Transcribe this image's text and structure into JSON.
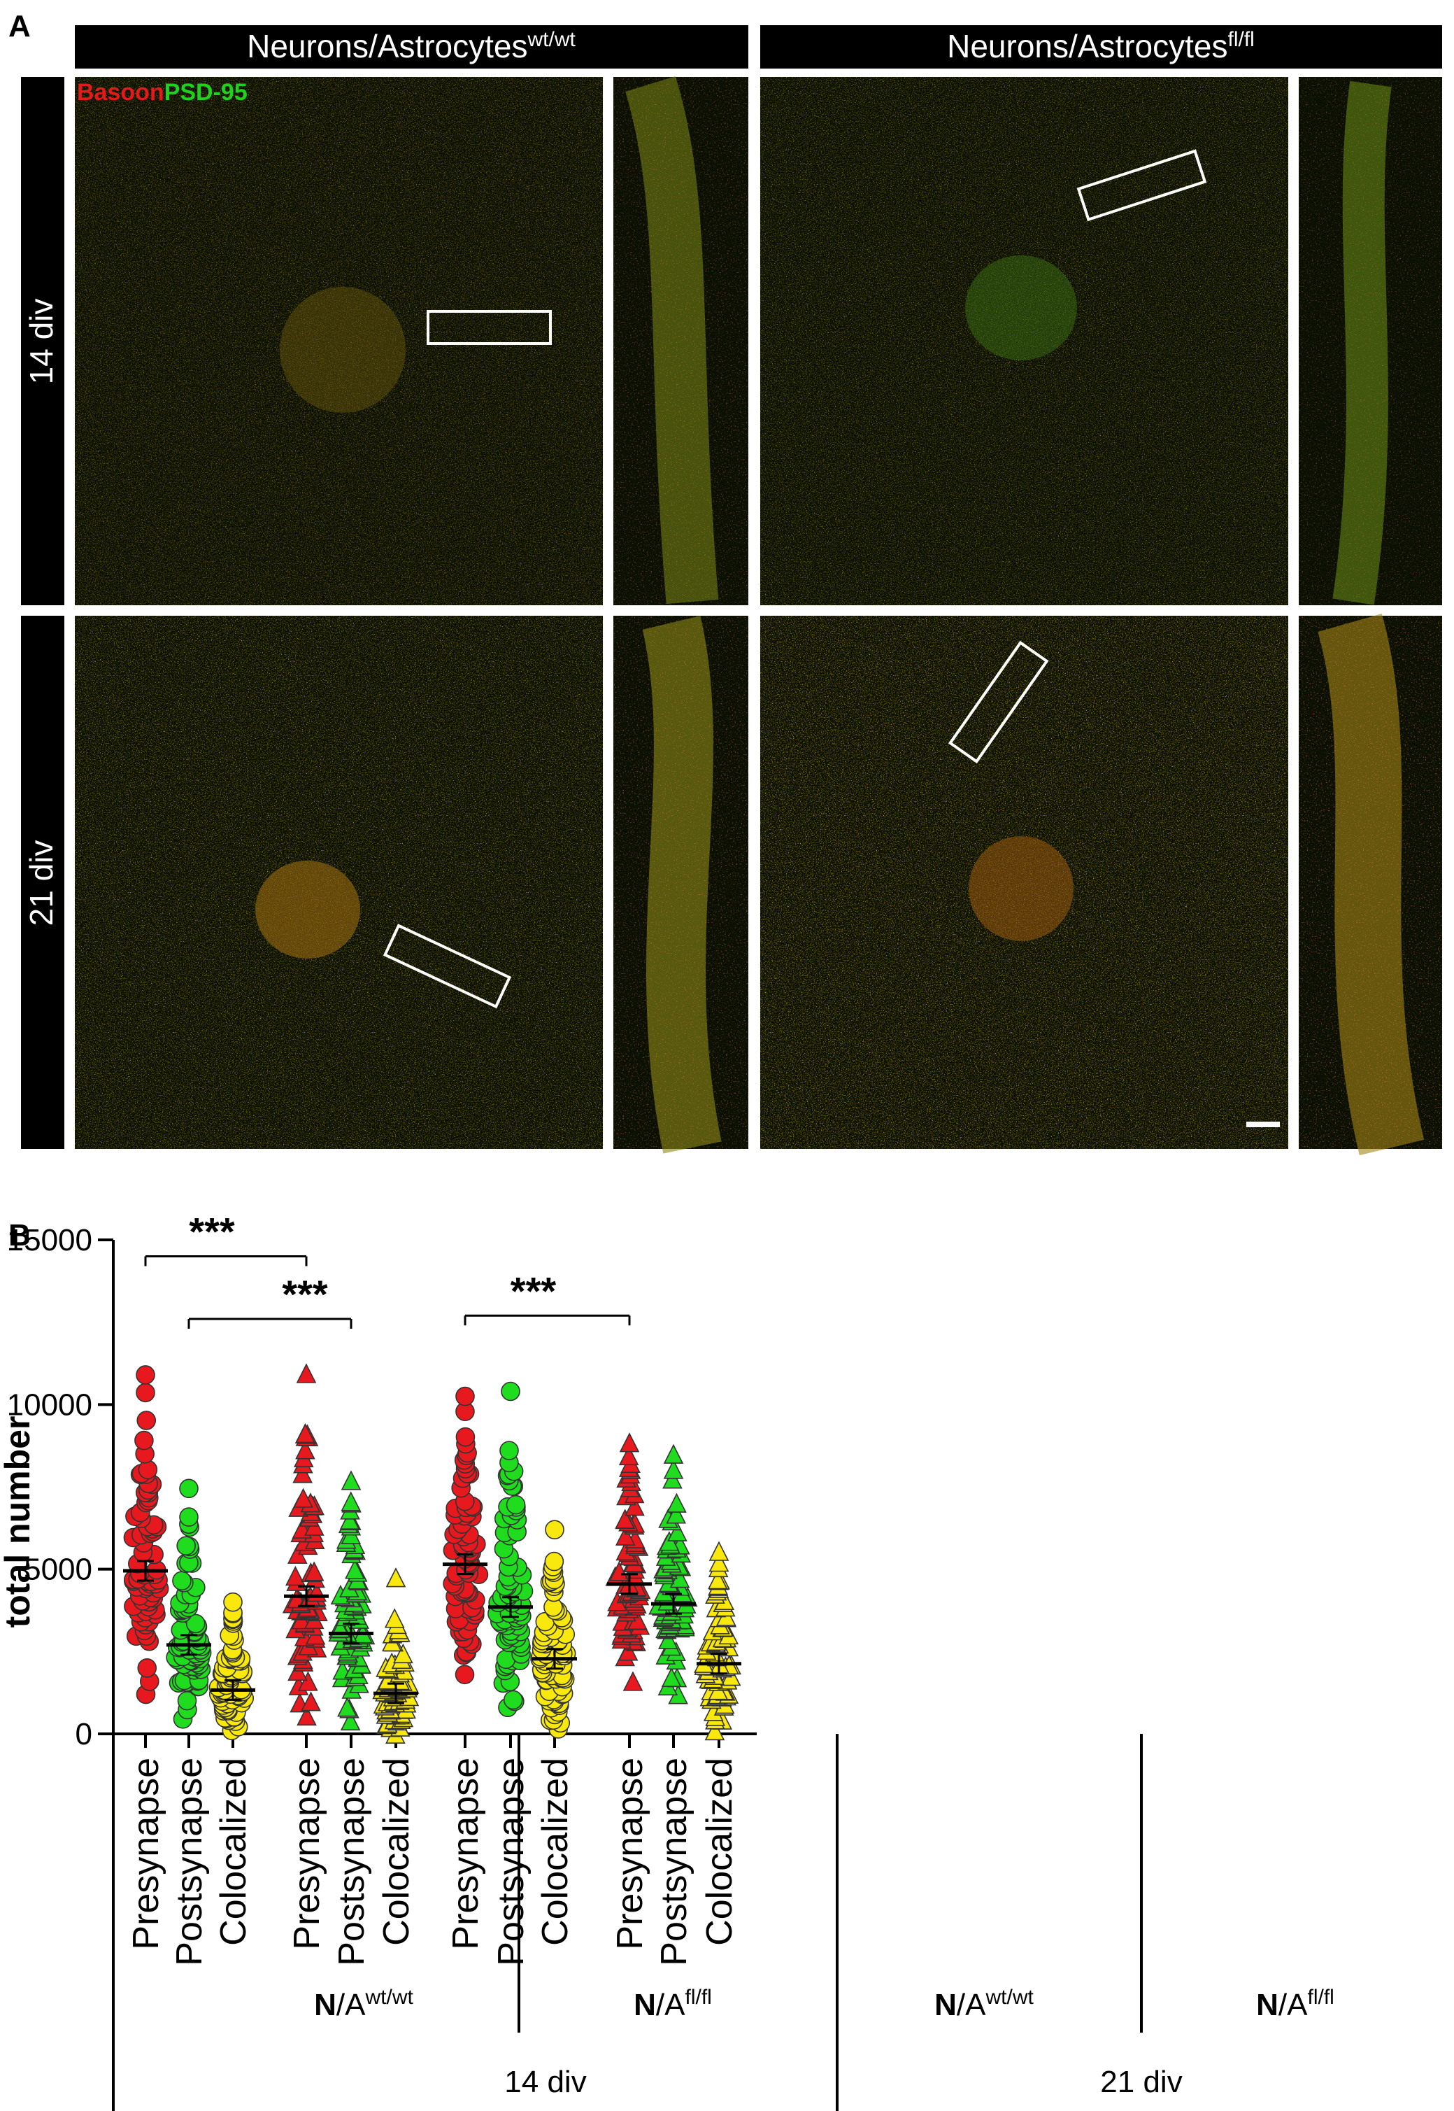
{
  "panel_a": {
    "letter": "A",
    "columns": [
      {
        "label_main": "Neurons/Astrocytes",
        "label_sup": "wt/wt"
      },
      {
        "label_main": "Neurons/Astrocytes",
        "label_sup": "fl/fl"
      }
    ],
    "rows": [
      "14 div",
      "21 div"
    ],
    "stain_labels": [
      {
        "text": "Basoon",
        "color": "#e21a1a"
      },
      {
        "text": "PSD-95",
        "color": "#1fd21f"
      }
    ]
  },
  "colors": {
    "presynapse": "#e8191e",
    "postsynapse": "#1fdc1f",
    "colocalized": "#f8e80e",
    "marker_edge": "#333333",
    "header_bg": "#000000",
    "micro_bg": "#0a0f05"
  },
  "chart_data": {
    "panel_letter": "B",
    "type": "scatter",
    "ylabel": "total number",
    "ylim": [
      0,
      15000
    ],
    "yticks": [
      "0",
      "5000",
      "10000",
      "15000"
    ],
    "categories": [
      "Presynapse",
      "Postsynapse",
      "Colocalized",
      "Presynapse",
      "Postsynapse",
      "Colocalized",
      "Presynapse",
      "Postsynapse",
      "Colocalized",
      "Presynapse",
      "Postsynapse",
      "Colocalized"
    ],
    "groups": [
      {
        "label_main": "N",
        "label_sep": "/A",
        "label_sup": "wt/wt",
        "period": "14 div"
      },
      {
        "label_main": "N",
        "label_sep": "/A",
        "label_sup": "fl/fl",
        "period": "14 div"
      },
      {
        "label_main": "N",
        "label_sep": "/A",
        "label_sup": "wt/wt",
        "period": "21 div"
      },
      {
        "label_main": "N",
        "label_sep": "/A",
        "label_sup": "fl/fl",
        "period": "21 div"
      }
    ],
    "periods": [
      "14 div",
      "21 div"
    ],
    "series": [
      {
        "group": 0,
        "category": "Presynapse",
        "marker": "circle",
        "color": "presynapse",
        "mean": 4950,
        "min": 1200,
        "max": 10900
      },
      {
        "group": 0,
        "category": "Postsynapse",
        "marker": "circle",
        "color": "postsynapse",
        "mean": 2700,
        "min": 450,
        "max": 7450
      },
      {
        "group": 0,
        "category": "Colocalized",
        "marker": "circle",
        "color": "colocalized",
        "mean": 1330,
        "min": 100,
        "max": 4000
      },
      {
        "group": 1,
        "category": "Presynapse",
        "marker": "triangle",
        "color": "presynapse",
        "mean": 4180,
        "min": 500,
        "max": 10900
      },
      {
        "group": 1,
        "category": "Postsynapse",
        "marker": "triangle",
        "color": "postsynapse",
        "mean": 3050,
        "min": 350,
        "max": 7650
      },
      {
        "group": 1,
        "category": "Colocalized",
        "marker": "triangle",
        "color": "colocalized",
        "mean": 1230,
        "min": -50,
        "max": 4700
      },
      {
        "group": 2,
        "category": "Presynapse",
        "marker": "circle",
        "color": "presynapse",
        "mean": 5150,
        "min": 1800,
        "max": 10250
      },
      {
        "group": 2,
        "category": "Postsynapse",
        "marker": "circle",
        "color": "postsynapse",
        "mean": 3850,
        "min": 800,
        "max": 10400
      },
      {
        "group": 2,
        "category": "Colocalized",
        "marker": "circle",
        "color": "colocalized",
        "mean": 2280,
        "min": 150,
        "max": 6200
      },
      {
        "group": 3,
        "category": "Presynapse",
        "marker": "triangle",
        "color": "presynapse",
        "mean": 4550,
        "min": 1550,
        "max": 8800
      },
      {
        "group": 3,
        "category": "Postsynapse",
        "marker": "triangle",
        "color": "postsynapse",
        "mean": 3950,
        "min": 1150,
        "max": 8450
      },
      {
        "group": 3,
        "category": "Colocalized",
        "marker": "triangle",
        "color": "colocalized",
        "mean": 2130,
        "min": 50,
        "max": 5500
      }
    ],
    "significance": [
      {
        "from_index": 0,
        "to_index": 3,
        "label": "***",
        "y": 14500
      },
      {
        "from_index": 1,
        "to_index": 4,
        "label": "***",
        "y": 12600
      },
      {
        "from_index": 6,
        "to_index": 9,
        "label": "***",
        "y": 12700
      }
    ]
  }
}
